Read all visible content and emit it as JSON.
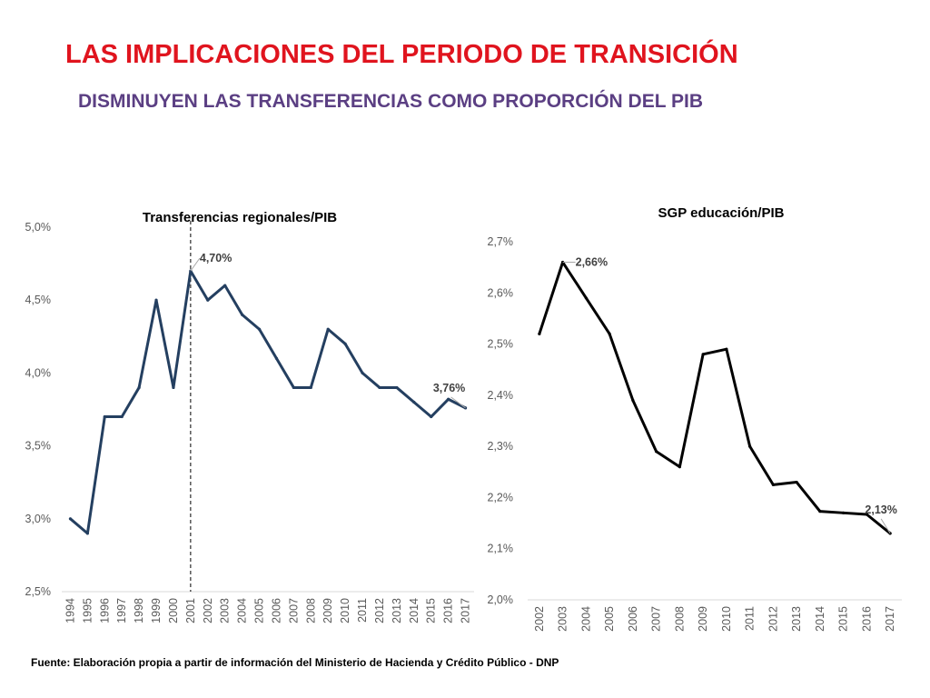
{
  "header": {
    "title": "LAS IMPLICACIONES DEL PERIODO DE TRANSICIÓN",
    "subtitle": "DISMINUYEN LAS TRANSFERENCIAS COMO PROPORCIÓN DEL PIB"
  },
  "footer": {
    "source": "Fuente: Elaboración propia a partir de información del Ministerio de Hacienda y Crédito Público - DNP"
  },
  "chart_data": [
    {
      "type": "line",
      "title": "Transferencias regionales/PIB",
      "xlabel": "",
      "ylabel": "",
      "x": [
        "1994",
        "1995",
        "1996",
        "1997",
        "1998",
        "1999",
        "2000",
        "2001",
        "2002",
        "2003",
        "2004",
        "2005",
        "2006",
        "2007",
        "2008",
        "2009",
        "2010",
        "2011",
        "2012",
        "2013",
        "2014",
        "2015",
        "2016",
        "2017"
      ],
      "series": [
        {
          "values": [
            3.0,
            2.9,
            3.7,
            3.7,
            3.9,
            4.5,
            3.9,
            4.7,
            4.5,
            4.6,
            4.4,
            4.3,
            4.1,
            3.9,
            3.9,
            4.3,
            4.2,
            4.0,
            3.9,
            3.9,
            3.8,
            3.7,
            3.82,
            3.76
          ],
          "color": "#243f60"
        }
      ],
      "ylim": [
        2.5,
        5.0
      ],
      "yticks": [
        2.5,
        3.0,
        3.5,
        4.0,
        4.5,
        5.0
      ],
      "ytick_labels": [
        "2,5%",
        "3,0%",
        "3,5%",
        "4,0%",
        "4,5%",
        "5,0%"
      ],
      "annotations": [
        {
          "x": "2001",
          "value": 4.7,
          "text": "4,70%"
        },
        {
          "x": "2017",
          "value": 3.76,
          "text": "3,76%"
        }
      ],
      "reference_line": {
        "x": "2001",
        "style": "dashed"
      },
      "grid": false,
      "legend": "none"
    },
    {
      "type": "line",
      "title": "SGP educación/PIB",
      "xlabel": "",
      "ylabel": "",
      "x": [
        "2002",
        "2003",
        "2004",
        "2005",
        "2006",
        "2007",
        "2008",
        "2009",
        "2010",
        "2011",
        "2012",
        "2013",
        "2014",
        "2015",
        "2016",
        "2017"
      ],
      "series": [
        {
          "values": [
            2.52,
            2.66,
            2.59,
            2.52,
            2.39,
            2.29,
            2.26,
            2.48,
            2.49,
            2.3,
            2.225,
            2.23,
            2.173,
            2.17,
            2.167,
            2.13
          ],
          "color": "#000000"
        }
      ],
      "ylim": [
        2.0,
        2.7
      ],
      "yticks": [
        2.0,
        2.1,
        2.2,
        2.3,
        2.4,
        2.5,
        2.6,
        2.7
      ],
      "ytick_labels": [
        "2,0%",
        "2,1%",
        "2,2%",
        "2,3%",
        "2,4%",
        "2,5%",
        "2,6%",
        "2,7%"
      ],
      "annotations": [
        {
          "x": "2003",
          "value": 2.66,
          "text": "2,66%"
        },
        {
          "x": "2017",
          "value": 2.13,
          "text": "2,13%"
        }
      ],
      "grid": false,
      "legend": "none"
    }
  ]
}
